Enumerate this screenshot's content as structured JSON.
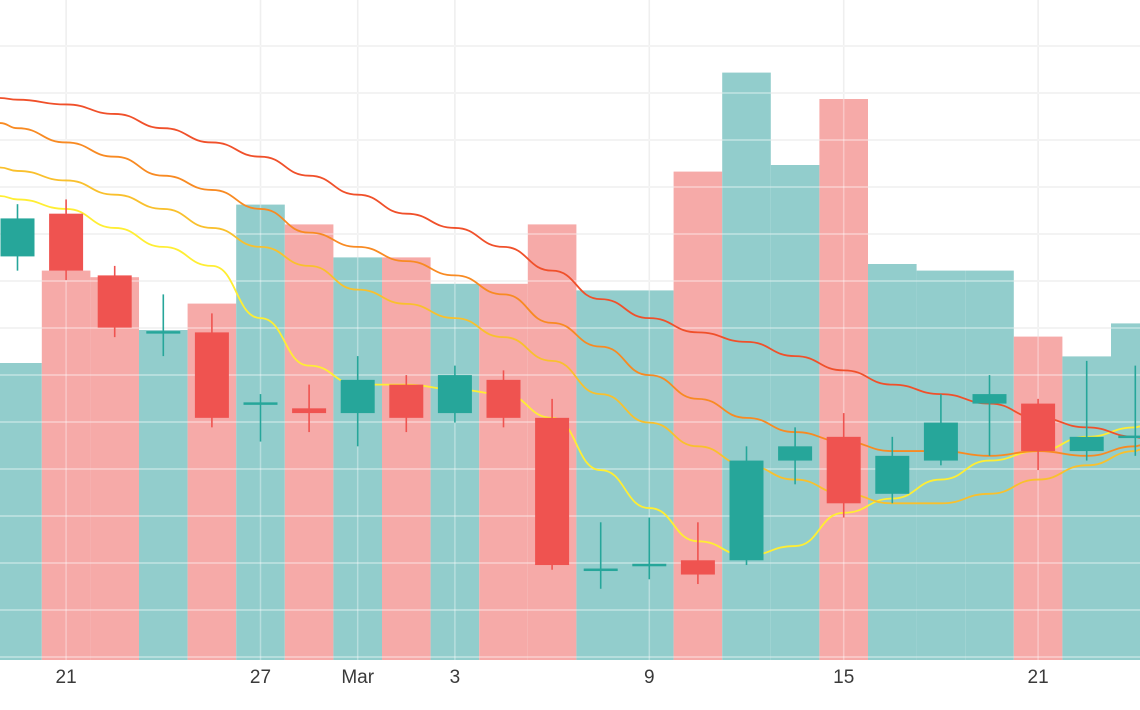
{
  "chart_data": {
    "type": "candlestick",
    "x_tick_labels": [
      {
        "day": 1,
        "label": "21"
      },
      {
        "day": 5,
        "label": "27"
      },
      {
        "day": 7,
        "label": "Mar"
      },
      {
        "day": 9,
        "label": "3"
      },
      {
        "day": 13,
        "label": "9"
      },
      {
        "day": 17,
        "label": "15"
      },
      {
        "day": 21,
        "label": "21"
      }
    ],
    "price_range": [
      21.1,
      35.0
    ],
    "volume_range": [
      0,
      100
    ],
    "grid": true,
    "colors": {
      "up": "#26a69a",
      "down": "#ef5350",
      "volume_up": "#92cdcc",
      "volume_down": "#f6aaa8",
      "grid": "#e6e6e6",
      "ma_short": "#ffee33",
      "ma_mid1": "#f9c02d",
      "ma_mid2": "#f88a22",
      "ma_long": "#f0502a"
    },
    "candles": [
      {
        "day": 0,
        "open": 29.6,
        "close": 30.4,
        "high": 30.7,
        "low": 29.3,
        "volume": 45
      },
      {
        "day": 1,
        "open": 30.5,
        "close": 29.3,
        "high": 30.8,
        "low": 29.1,
        "volume": 59
      },
      {
        "day": 2,
        "open": 29.2,
        "close": 28.1,
        "high": 29.4,
        "low": 27.9,
        "volume": 58
      },
      {
        "day": 3,
        "open": 28.0,
        "close": 28.0,
        "high": 28.8,
        "low": 27.5,
        "volume": 50
      },
      {
        "day": 4,
        "open": 28.0,
        "close": 26.2,
        "high": 28.4,
        "low": 26.0,
        "volume": 54
      },
      {
        "day": 5,
        "open": 26.5,
        "close": 26.5,
        "high": 26.7,
        "low": 25.7,
        "volume": 69
      },
      {
        "day": 6,
        "open": 26.4,
        "close": 26.3,
        "high": 26.9,
        "low": 25.9,
        "volume": 66
      },
      {
        "day": 7,
        "open": 26.3,
        "close": 27.0,
        "high": 27.5,
        "low": 25.6,
        "volume": 61
      },
      {
        "day": 8,
        "open": 26.9,
        "close": 26.2,
        "high": 27.1,
        "low": 25.9,
        "volume": 61
      },
      {
        "day": 9,
        "open": 26.3,
        "close": 27.1,
        "high": 27.3,
        "low": 26.1,
        "volume": 57
      },
      {
        "day": 10,
        "open": 27.0,
        "close": 26.2,
        "high": 27.2,
        "low": 26.0,
        "volume": 57
      },
      {
        "day": 11,
        "open": 26.2,
        "close": 23.1,
        "high": 26.6,
        "low": 23.0,
        "volume": 66
      },
      {
        "day": 12,
        "open": 23.0,
        "close": 23.0,
        "high": 24.0,
        "low": 22.6,
        "volume": 56
      },
      {
        "day": 13,
        "open": 23.1,
        "close": 23.1,
        "high": 24.1,
        "low": 22.8,
        "volume": 56
      },
      {
        "day": 14,
        "open": 23.2,
        "close": 22.9,
        "high": 24.0,
        "low": 22.7,
        "volume": 74
      },
      {
        "day": 15,
        "open": 23.2,
        "close": 25.3,
        "high": 25.6,
        "low": 23.1,
        "volume": 89
      },
      {
        "day": 16,
        "open": 25.3,
        "close": 25.6,
        "high": 26.0,
        "low": 24.8,
        "volume": 75
      },
      {
        "day": 17,
        "open": 25.8,
        "close": 24.4,
        "high": 26.3,
        "low": 24.1,
        "volume": 85
      },
      {
        "day": 18,
        "open": 24.6,
        "close": 25.4,
        "high": 25.8,
        "low": 24.4,
        "volume": 60
      },
      {
        "day": 19,
        "open": 25.3,
        "close": 26.1,
        "high": 26.7,
        "low": 25.2,
        "volume": 59
      },
      {
        "day": 20,
        "open": 26.5,
        "close": 26.7,
        "high": 27.1,
        "low": 25.4,
        "volume": 59
      },
      {
        "day": 21,
        "open": 26.5,
        "close": 25.5,
        "high": 26.6,
        "low": 25.1,
        "volume": 49
      },
      {
        "day": 22,
        "open": 25.5,
        "close": 25.8,
        "high": 27.4,
        "low": 25.3,
        "volume": 46
      },
      {
        "day": 23,
        "open": 25.8,
        "close": 25.8,
        "high": 27.3,
        "low": 25.4,
        "volume": 51
      }
    ],
    "moving_averages": [
      {
        "color": "#ffee33",
        "values": [
          30.8,
          30.6,
          30.2,
          29.8,
          29.4,
          28.3,
          27.3,
          26.9,
          26.9,
          26.8,
          26.7,
          26.2,
          25.1,
          24.3,
          23.6,
          23.3,
          23.5,
          24.2,
          24.5,
          24.9,
          25.3,
          25.5,
          25.8,
          26.0
        ]
      },
      {
        "color": "#f9c02d",
        "values": [
          31.4,
          31.2,
          30.9,
          30.6,
          30.2,
          29.8,
          29.4,
          28.9,
          28.6,
          28.3,
          27.9,
          27.4,
          26.7,
          26.1,
          25.6,
          25.2,
          24.9,
          24.6,
          24.4,
          24.4,
          24.6,
          24.9,
          25.2,
          25.5
        ]
      },
      {
        "color": "#f88a22",
        "values": [
          32.3,
          32.0,
          31.7,
          31.3,
          31.0,
          30.6,
          30.1,
          29.8,
          29.5,
          29.2,
          28.8,
          28.2,
          27.7,
          27.1,
          26.6,
          26.2,
          25.9,
          25.7,
          25.5,
          25.5,
          25.4,
          25.5,
          25.4,
          25.6
        ]
      },
      {
        "color": "#f0502a",
        "values": [
          32.9,
          32.8,
          32.6,
          32.3,
          32.0,
          31.7,
          31.3,
          30.9,
          30.5,
          30.2,
          29.8,
          29.3,
          28.7,
          28.3,
          28.0,
          27.8,
          27.5,
          27.2,
          26.9,
          26.7,
          26.5,
          26.2,
          26.0,
          25.8
        ]
      }
    ]
  }
}
